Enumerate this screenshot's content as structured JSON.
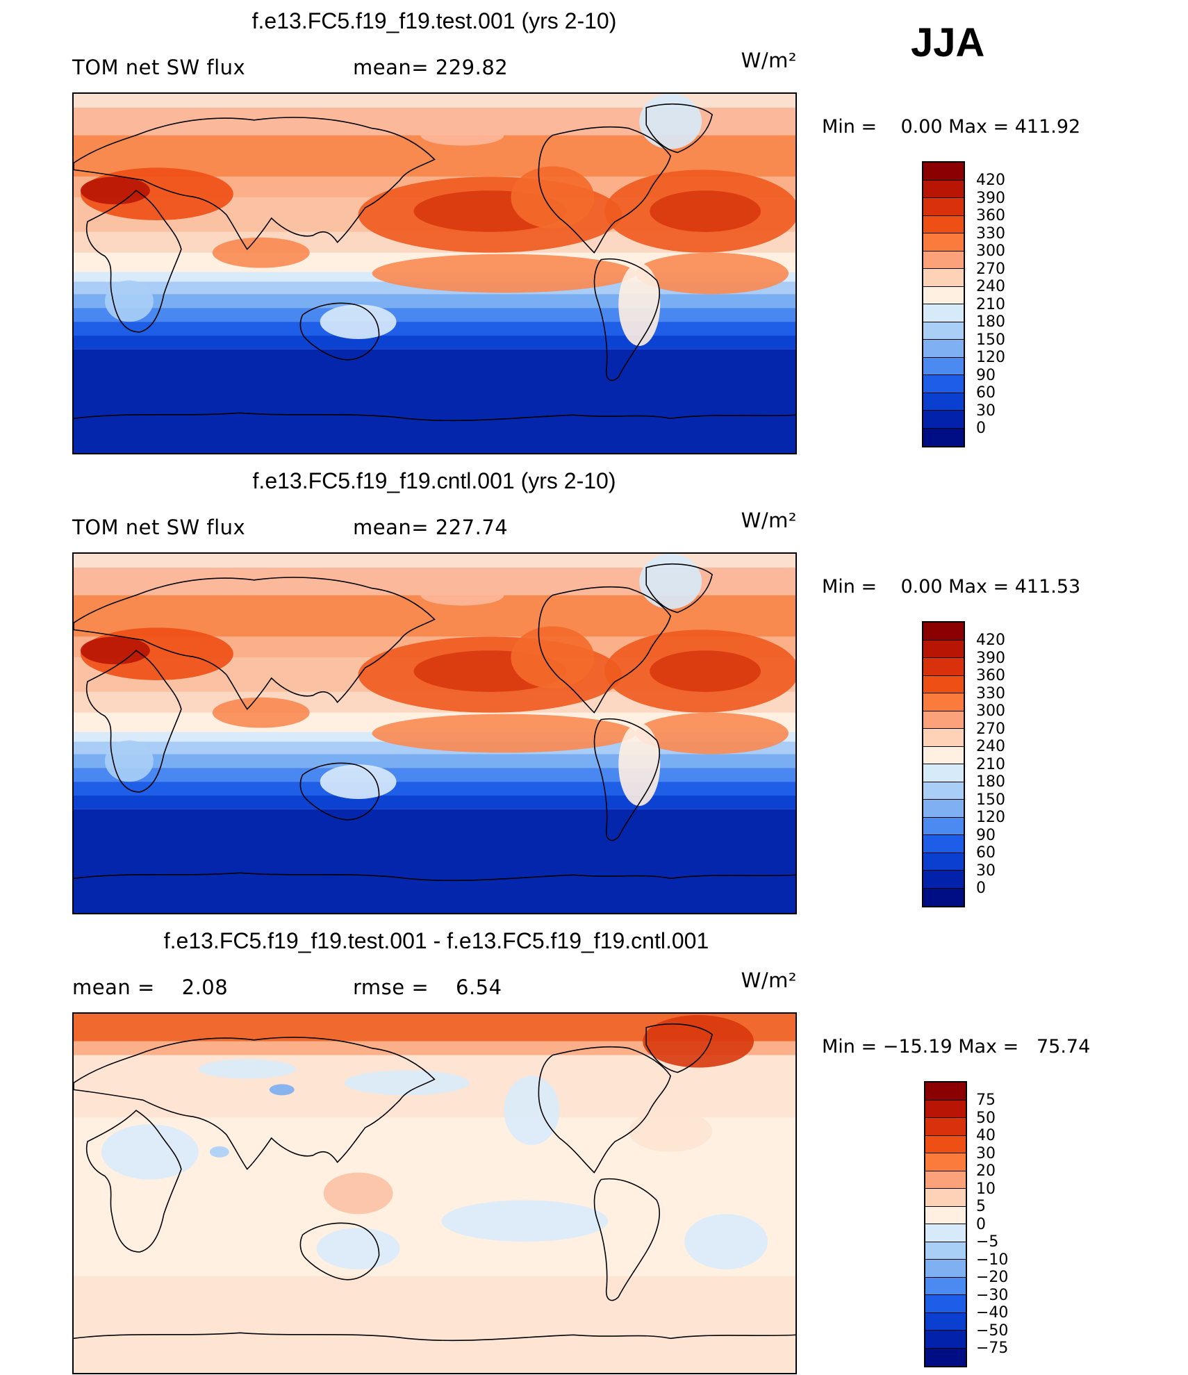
{
  "season": "JJA",
  "panels": [
    {
      "title": "f.e13.FC5.f19_f19.test.001 (yrs 2-10)",
      "left_label": "TOM net SW flux",
      "mid_label": "mean= 229.82",
      "units": "W/m²",
      "minmax": "Min =    0.00 Max = 411.92",
      "field": "absolute",
      "colorbar": {
        "ticks": [
          "420",
          "390",
          "360",
          "330",
          "300",
          "270",
          "240",
          "210",
          "180",
          "150",
          "120",
          "90",
          "60",
          "30",
          "0"
        ],
        "colors": [
          "#8b0000",
          "#b81504",
          "#d8310c",
          "#ee4f14",
          "#fa7b3b",
          "#fca27a",
          "#fdd2b6",
          "#fff0e2",
          "#d7eafa",
          "#aacff7",
          "#7fb0f2",
          "#4b8af0",
          "#1d5de8",
          "#0a3fd0",
          "#0222ab",
          "#000e86"
        ]
      }
    },
    {
      "title": "f.e13.FC5.f19_f19.cntl.001 (yrs 2-10)",
      "left_label": "TOM net SW flux",
      "mid_label": "mean= 227.74",
      "units": "W/m²",
      "minmax": "Min =    0.00 Max = 411.53",
      "field": "absolute",
      "colorbar": {
        "ticks": [
          "420",
          "390",
          "360",
          "330",
          "300",
          "270",
          "240",
          "210",
          "180",
          "150",
          "120",
          "90",
          "60",
          "30",
          "0"
        ],
        "colors": [
          "#8b0000",
          "#b81504",
          "#d8310c",
          "#ee4f14",
          "#fa7b3b",
          "#fca27a",
          "#fdd2b6",
          "#fff0e2",
          "#d7eafa",
          "#aacff7",
          "#7fb0f2",
          "#4b8af0",
          "#1d5de8",
          "#0a3fd0",
          "#0222ab",
          "#000e86"
        ]
      }
    },
    {
      "title": "f.e13.FC5.f19_f19.test.001 - f.e13.FC5.f19_f19.cntl.001",
      "left_label": "mean =    2.08",
      "mid_label": "rmse =    6.54",
      "units": "W/m²",
      "minmax": "Min = −15.19 Max =   75.74",
      "field": "difference",
      "colorbar": {
        "ticks": [
          "75",
          "50",
          "40",
          "30",
          "20",
          "10",
          "5",
          "0",
          "−5",
          "−10",
          "−20",
          "−30",
          "−40",
          "−50",
          "−75"
        ],
        "colors": [
          "#8b0000",
          "#b81504",
          "#d8310c",
          "#ee4f14",
          "#fa7b3b",
          "#fca27a",
          "#fdd2b6",
          "#fff0e2",
          "#d7eafa",
          "#aacff7",
          "#7fb0f2",
          "#4b8af0",
          "#1d5de8",
          "#0a3fd0",
          "#0222ab",
          "#000e86"
        ]
      }
    }
  ]
}
